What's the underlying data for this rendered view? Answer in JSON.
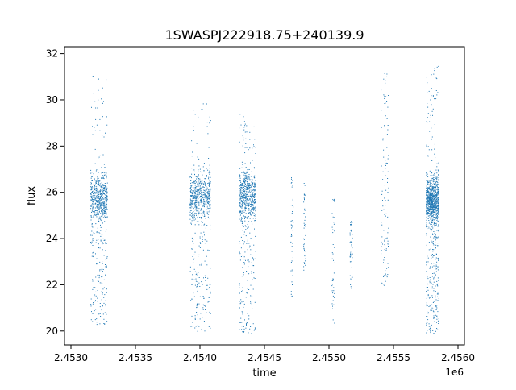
{
  "chart_data": {
    "type": "scatter",
    "title": "1SWASPJ222918.75+240139.9",
    "xlabel": "time",
    "ylabel": "flux",
    "x_offset_label": "1e6",
    "xlim": [
      2.45295,
      2.45605
    ],
    "ylim": [
      19.4,
      32.3
    ],
    "x_ticks": [
      2.453,
      2.4535,
      2.454,
      2.4545,
      2.455,
      2.4555,
      2.456
    ],
    "x_tick_labels": [
      "2.4530",
      "2.4535",
      "2.4540",
      "2.4545",
      "2.4550",
      "2.4555",
      "2.4560"
    ],
    "y_ticks": [
      20,
      22,
      24,
      26,
      28,
      30,
      32
    ],
    "y_tick_labels": [
      "20",
      "22",
      "24",
      "26",
      "28",
      "30",
      "32"
    ],
    "grid": false,
    "marker_color": "#1f77b4",
    "clusters": [
      {
        "x_start": 2.45315,
        "x_end": 2.45328,
        "median_flux": 25.8,
        "min_flux": 20.3,
        "max_flux": 31.1,
        "density": "high"
      },
      {
        "x_start": 2.45392,
        "x_end": 2.45408,
        "median_flux": 25.9,
        "min_flux": 20.0,
        "max_flux": 29.9,
        "density": "high"
      },
      {
        "x_start": 2.4543,
        "x_end": 2.45443,
        "median_flux": 25.9,
        "min_flux": 19.9,
        "max_flux": 29.4,
        "density": "high"
      },
      {
        "x_start": 2.4547,
        "x_end": 2.45472,
        "median_flux": 25.0,
        "min_flux": 21.2,
        "max_flux": 26.9,
        "density": "low"
      },
      {
        "x_start": 2.4548,
        "x_end": 2.45482,
        "median_flux": 24.8,
        "min_flux": 22.6,
        "max_flux": 26.6,
        "density": "low"
      },
      {
        "x_start": 2.45502,
        "x_end": 2.45504,
        "median_flux": 24.0,
        "min_flux": 20.3,
        "max_flux": 25.9,
        "density": "low"
      },
      {
        "x_start": 2.45516,
        "x_end": 2.45518,
        "median_flux": 23.8,
        "min_flux": 21.7,
        "max_flux": 24.8,
        "density": "low"
      },
      {
        "x_start": 2.4554,
        "x_end": 2.45546,
        "median_flux": 25.0,
        "min_flux": 21.9,
        "max_flux": 31.4,
        "density": "medium"
      },
      {
        "x_start": 2.45575,
        "x_end": 2.45585,
        "median_flux": 25.7,
        "min_flux": 19.9,
        "max_flux": 31.5,
        "density": "very-high"
      }
    ]
  }
}
